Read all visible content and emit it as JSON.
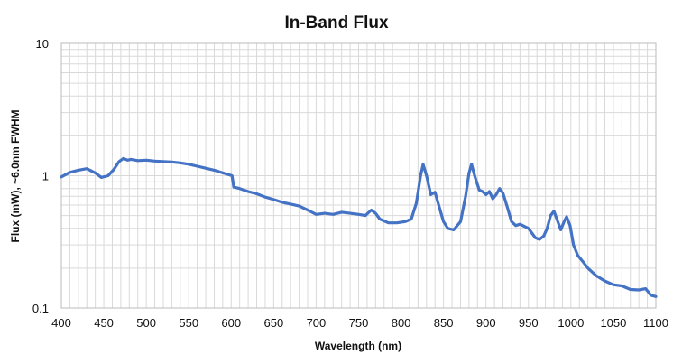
{
  "chart_data": {
    "type": "line",
    "title": "In-Band Flux",
    "xlabel": "Wavelength (nm)",
    "ylabel": "Flux (mW), ~6.0nm FWHM",
    "xlim": [
      400,
      1100
    ],
    "ylim": [
      0.1,
      10
    ],
    "yscale": "log",
    "grid": true,
    "legend": "none",
    "x_ticks": [
      "400",
      "450",
      "500",
      "550",
      "600",
      "650",
      "700",
      "750",
      "800",
      "850",
      "900",
      "950",
      "1000",
      "1050",
      "1100"
    ],
    "y_ticks": [
      {
        "value": 10,
        "label": "10"
      },
      {
        "value": 1,
        "label": "1"
      },
      {
        "value": 0.1,
        "label": "0.1"
      }
    ],
    "series": [
      {
        "color": "#4472c4",
        "points": [
          [
            400,
            0.98
          ],
          [
            410,
            1.06
          ],
          [
            420,
            1.1
          ],
          [
            430,
            1.13
          ],
          [
            440,
            1.05
          ],
          [
            447,
            0.97
          ],
          [
            455,
            1.0
          ],
          [
            462,
            1.12
          ],
          [
            468,
            1.28
          ],
          [
            473,
            1.35
          ],
          [
            478,
            1.31
          ],
          [
            482,
            1.33
          ],
          [
            490,
            1.3
          ],
          [
            500,
            1.31
          ],
          [
            510,
            1.29
          ],
          [
            520,
            1.28
          ],
          [
            530,
            1.27
          ],
          [
            540,
            1.25
          ],
          [
            550,
            1.22
          ],
          [
            560,
            1.18
          ],
          [
            570,
            1.14
          ],
          [
            580,
            1.1
          ],
          [
            590,
            1.05
          ],
          [
            601,
            1.0
          ],
          [
            603,
            0.82
          ],
          [
            610,
            0.8
          ],
          [
            620,
            0.76
          ],
          [
            630,
            0.73
          ],
          [
            640,
            0.69
          ],
          [
            650,
            0.66
          ],
          [
            660,
            0.63
          ],
          [
            670,
            0.61
          ],
          [
            680,
            0.59
          ],
          [
            690,
            0.55
          ],
          [
            700,
            0.51
          ],
          [
            710,
            0.52
          ],
          [
            720,
            0.51
          ],
          [
            730,
            0.53
          ],
          [
            740,
            0.52
          ],
          [
            750,
            0.51
          ],
          [
            758,
            0.5
          ],
          [
            765,
            0.55
          ],
          [
            770,
            0.52
          ],
          [
            775,
            0.47
          ],
          [
            785,
            0.44
          ],
          [
            795,
            0.44
          ],
          [
            805,
            0.45
          ],
          [
            812,
            0.47
          ],
          [
            818,
            0.62
          ],
          [
            823,
            1.0
          ],
          [
            826,
            1.22
          ],
          [
            830,
            1.0
          ],
          [
            835,
            0.72
          ],
          [
            840,
            0.75
          ],
          [
            845,
            0.58
          ],
          [
            850,
            0.45
          ],
          [
            855,
            0.4
          ],
          [
            862,
            0.39
          ],
          [
            870,
            0.45
          ],
          [
            876,
            0.7
          ],
          [
            880,
            1.05
          ],
          [
            883,
            1.22
          ],
          [
            887,
            0.98
          ],
          [
            892,
            0.78
          ],
          [
            896,
            0.76
          ],
          [
            900,
            0.72
          ],
          [
            904,
            0.76
          ],
          [
            908,
            0.67
          ],
          [
            912,
            0.72
          ],
          [
            916,
            0.8
          ],
          [
            920,
            0.74
          ],
          [
            925,
            0.58
          ],
          [
            930,
            0.45
          ],
          [
            935,
            0.42
          ],
          [
            940,
            0.43
          ],
          [
            950,
            0.4
          ],
          [
            958,
            0.34
          ],
          [
            963,
            0.33
          ],
          [
            968,
            0.35
          ],
          [
            972,
            0.4
          ],
          [
            976,
            0.5
          ],
          [
            980,
            0.54
          ],
          [
            984,
            0.46
          ],
          [
            988,
            0.39
          ],
          [
            992,
            0.45
          ],
          [
            995,
            0.49
          ],
          [
            999,
            0.42
          ],
          [
            1003,
            0.3
          ],
          [
            1008,
            0.25
          ],
          [
            1015,
            0.22
          ],
          [
            1020,
            0.2
          ],
          [
            1030,
            0.175
          ],
          [
            1040,
            0.16
          ],
          [
            1050,
            0.15
          ],
          [
            1060,
            0.147
          ],
          [
            1070,
            0.138
          ],
          [
            1080,
            0.137
          ],
          [
            1088,
            0.14
          ],
          [
            1094,
            0.125
          ],
          [
            1100,
            0.122
          ]
        ]
      }
    ]
  }
}
